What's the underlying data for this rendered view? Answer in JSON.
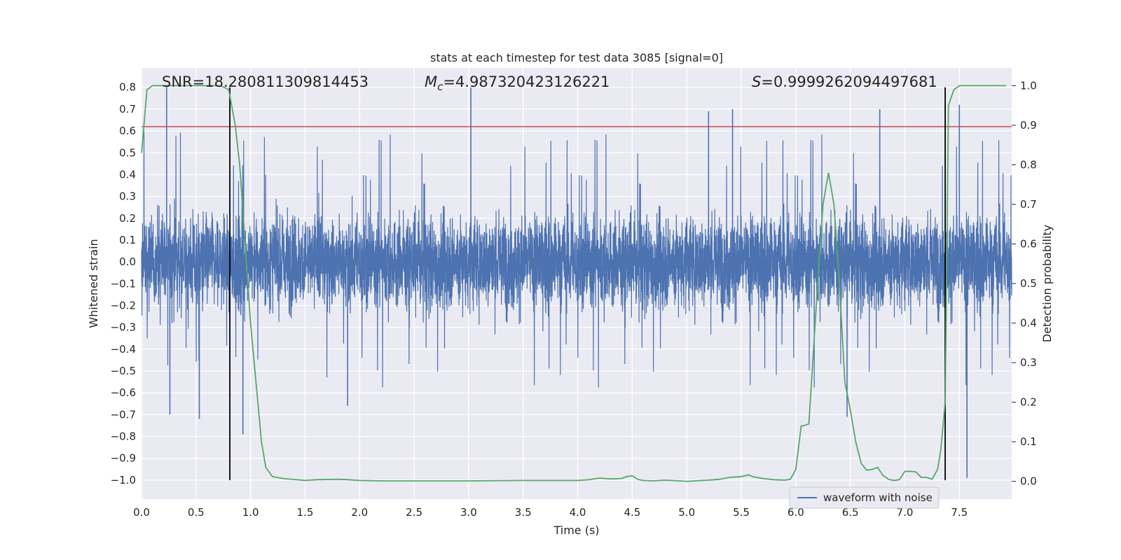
{
  "chart_data": {
    "type": "line",
    "title": "stats at each timestep for test data 3085 [signal=0]",
    "xlabel": "Time (s)",
    "ylabel_left": "Whitened strain",
    "ylabel_right": "Detection probability",
    "xlim": [
      0.0,
      7.98
    ],
    "ylim_left": [
      -1.087,
      0.889
    ],
    "ylim_right": [
      -0.045,
      1.045
    ],
    "x_ticks": [
      0.0,
      0.5,
      1.0,
      1.5,
      2.0,
      2.5,
      3.0,
      3.5,
      4.0,
      4.5,
      5.0,
      5.5,
      6.0,
      6.5,
      7.0,
      7.5
    ],
    "x_tick_labels": [
      "0.0",
      "0.5",
      "1.0",
      "1.5",
      "2.0",
      "2.5",
      "3.0",
      "3.5",
      "4.0",
      "4.5",
      "5.0",
      "5.5",
      "6.0",
      "6.5",
      "7.0",
      "7.5"
    ],
    "y_left_ticks": [
      0.8,
      0.7,
      0.6,
      0.5,
      0.4,
      0.3,
      0.2,
      0.1,
      0.0,
      -0.1,
      -0.2,
      -0.3,
      -0.4,
      -0.5,
      -0.6,
      -0.7,
      -0.8,
      -0.9,
      -1.0
    ],
    "y_left_tick_labels": [
      "0.8",
      "0.7",
      "0.6",
      "0.5",
      "0.4",
      "0.3",
      "0.2",
      "0.1",
      "0.0",
      "−0.1",
      "−0.2",
      "−0.3",
      "−0.4",
      "−0.5",
      "−0.6",
      "−0.7",
      "−0.8",
      "−0.9",
      "−1.0"
    ],
    "y_right_ticks": [
      1.0,
      0.9,
      0.8,
      0.7,
      0.6,
      0.5,
      0.4,
      0.3,
      0.2,
      0.1,
      0.0
    ],
    "y_right_tick_labels": [
      "1.0",
      "0.9",
      "0.8",
      "0.7",
      "0.6",
      "0.5",
      "0.4",
      "0.3",
      "0.2",
      "0.1",
      "0.0"
    ],
    "annotations": {
      "snr": "SNR=18.280811309814453",
      "mc_symbol": "M",
      "mc_subscript": "c",
      "mc_value": "=4.987320423126221",
      "s_symbol": "S",
      "s_value": "=0.9999262094497681"
    },
    "threshold_line": {
      "y": 0.62,
      "color": "#c44e52"
    },
    "vertical_lines": [
      {
        "x": 0.81,
        "y_top": 0.8,
        "y_bottom": -1.0,
        "color": "#000000"
      },
      {
        "x": 7.37,
        "y_top": 0.8,
        "y_bottom": -1.0,
        "color": "#000000"
      }
    ],
    "series": [
      {
        "name": "waveform with noise",
        "axis": "left",
        "color": "#4c72b0",
        "kind": "dense_noise",
        "t_range": [
          0.0,
          7.98
        ],
        "typical_amplitude": 0.27,
        "max_amplitude": 0.8,
        "min_amplitude": -1.0,
        "spikes": [
          {
            "x": 0.23,
            "y": 0.8
          },
          {
            "x": 0.26,
            "y": -0.7
          },
          {
            "x": 0.53,
            "y": -0.72
          },
          {
            "x": 0.93,
            "y": -0.79
          },
          {
            "x": 1.89,
            "y": -0.66
          },
          {
            "x": 3.02,
            "y": 0.8
          },
          {
            "x": 5.2,
            "y": 0.69
          },
          {
            "x": 5.42,
            "y": 0.7
          },
          {
            "x": 6.77,
            "y": 0.7
          },
          {
            "x": 6.47,
            "y": -0.71
          },
          {
            "x": 7.5,
            "y": 0.72
          },
          {
            "x": 7.57,
            "y": -0.99
          }
        ]
      },
      {
        "name": "",
        "axis": "right",
        "color": "#55a868",
        "kind": "line",
        "x": [
          0.0,
          0.05,
          0.1,
          0.2,
          0.4,
          0.6,
          0.7,
          0.75,
          0.8,
          0.86,
          0.9,
          0.95,
          1.0,
          1.05,
          1.1,
          1.14,
          1.2,
          1.3,
          1.5,
          1.6,
          1.8,
          1.9,
          2.0,
          2.2,
          2.5,
          3.0,
          3.5,
          4.0,
          4.1,
          4.2,
          4.3,
          4.4,
          4.45,
          4.5,
          4.55,
          4.6,
          4.7,
          4.8,
          5.0,
          5.2,
          5.3,
          5.4,
          5.5,
          5.57,
          5.6,
          5.7,
          5.8,
          5.9,
          5.95,
          6.0,
          6.05,
          6.07,
          6.12,
          6.2,
          6.25,
          6.3,
          6.35,
          6.4,
          6.45,
          6.5,
          6.55,
          6.6,
          6.65,
          6.7,
          6.75,
          6.8,
          6.85,
          6.9,
          6.95,
          7.0,
          7.05,
          7.1,
          7.15,
          7.2,
          7.25,
          7.3,
          7.33,
          7.37,
          7.4,
          7.45,
          7.5,
          7.55,
          7.6,
          7.7,
          7.8,
          7.93
        ],
        "y": [
          0.83,
          0.99,
          1.0,
          1.0,
          1.0,
          1.0,
          1.0,
          0.997,
          0.99,
          0.9,
          0.8,
          0.6,
          0.4,
          0.25,
          0.1,
          0.035,
          0.012,
          0.007,
          0.002,
          0.004,
          0.005,
          0.004,
          0.002,
          0.001,
          0.001,
          0.001,
          0.002,
          0.002,
          0.004,
          0.008,
          0.006,
          0.007,
          0.012,
          0.014,
          0.005,
          0.002,
          0.001,
          0.003,
          0.0,
          0.003,
          0.005,
          0.01,
          0.012,
          0.016,
          0.012,
          0.007,
          0.004,
          0.003,
          0.005,
          0.03,
          0.14,
          0.14,
          0.145,
          0.5,
          0.7,
          0.78,
          0.7,
          0.5,
          0.25,
          0.18,
          0.1,
          0.045,
          0.028,
          0.03,
          0.035,
          0.015,
          0.005,
          0.002,
          0.004,
          0.025,
          0.025,
          0.024,
          0.01,
          0.01,
          0.005,
          0.03,
          0.08,
          0.2,
          0.95,
          0.99,
          1.0,
          1.0,
          1.0,
          1.0,
          1.0,
          1.0
        ]
      }
    ],
    "legend": {
      "placement": "lower-right",
      "entries": [
        "waveform with noise"
      ]
    },
    "grid": true,
    "colors": {
      "plot_bg": "#eaeaf2",
      "grid": "#ffffff",
      "waveform": "#4c72b0",
      "probability": "#55a868",
      "threshold": "#c44e52",
      "marker": "#000000"
    }
  }
}
